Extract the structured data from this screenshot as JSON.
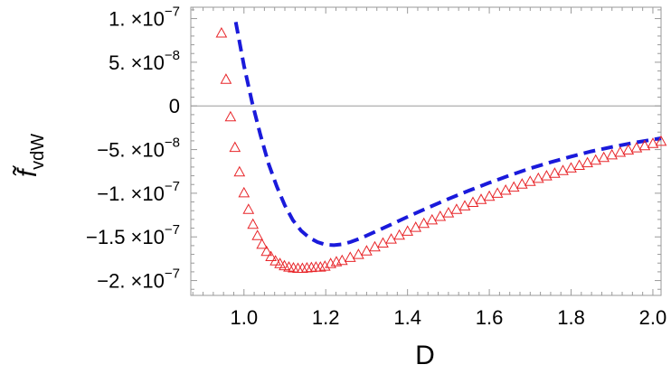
{
  "chart_data": {
    "type": "line",
    "title": "",
    "xlabel": "D",
    "ylabel": "f̃",
    "ylabel_sub": "vdW",
    "xlim": [
      0.87,
      2.02
    ],
    "ylim": [
      -2.17e-07,
      1.13e-07
    ],
    "x_ticks": [
      {
        "value": 1.0,
        "label": "1.0"
      },
      {
        "value": 1.2,
        "label": "1.2"
      },
      {
        "value": 1.4,
        "label": "1.4"
      },
      {
        "value": 1.6,
        "label": "1.6"
      },
      {
        "value": 1.8,
        "label": "1.8"
      },
      {
        "value": 2.0,
        "label": "2.0"
      }
    ],
    "y_ticks": [
      {
        "value": 1e-07,
        "mant": "1.",
        "exp": "-7"
      },
      {
        "value": 5e-08,
        "mant": "5.",
        "exp": "-8"
      },
      {
        "value": 0,
        "mant": "0",
        "exp": ""
      },
      {
        "value": -5e-08,
        "mant": "-5.",
        "exp": "-8"
      },
      {
        "value": -1e-07,
        "mant": "-1.",
        "exp": "-7"
      },
      {
        "value": -1.5e-07,
        "mant": "-1.5",
        "exp": "-7"
      },
      {
        "value": -2e-07,
        "mant": "-2.",
        "exp": "-7"
      }
    ],
    "tick_suffix": "×10",
    "zero_line": true,
    "series": [
      {
        "style": "dashed-line",
        "color": "#1a1adb",
        "x": [
          0.98,
          1.0,
          1.02,
          1.04,
          1.06,
          1.08,
          1.1,
          1.12,
          1.14,
          1.16,
          1.18,
          1.2,
          1.22,
          1.24,
          1.26,
          1.28,
          1.3,
          1.35,
          1.4,
          1.45,
          1.5,
          1.55,
          1.6,
          1.65,
          1.7,
          1.75,
          1.8,
          1.85,
          1.9,
          1.95,
          2.0,
          2.02
        ],
        "y": [
          9.6e-08,
          4.6e-08,
          4e-09,
          -3.3e-08,
          -6.6e-08,
          -9.2e-08,
          -1.14e-07,
          -1.31e-07,
          -1.43e-07,
          -1.51e-07,
          -1.56e-07,
          -1.59e-07,
          -1.595e-07,
          -1.585e-07,
          -1.56e-07,
          -1.525e-07,
          -1.485e-07,
          -1.38e-07,
          -1.27e-07,
          -1.165e-07,
          -1.065e-07,
          -9.7e-08,
          -8.8e-08,
          -7.95e-08,
          -7.15e-08,
          -6.45e-08,
          -5.8e-08,
          -5.2e-08,
          -4.7e-08,
          -4.25e-08,
          -3.85e-08,
          -3.7e-08
        ]
      },
      {
        "style": "triangle-markers",
        "color": "#e8262a",
        "x": [
          0.945,
          0.956,
          0.967,
          0.978,
          0.989,
          1.0,
          1.011,
          1.022,
          1.033,
          1.044,
          1.055,
          1.066,
          1.077,
          1.088,
          1.099,
          1.11,
          1.121,
          1.132,
          1.143,
          1.154,
          1.165,
          1.176,
          1.187,
          1.198,
          1.212,
          1.226,
          1.24,
          1.26,
          1.28,
          1.3,
          1.32,
          1.34,
          1.36,
          1.38,
          1.4,
          1.42,
          1.44,
          1.46,
          1.48,
          1.5,
          1.52,
          1.54,
          1.56,
          1.58,
          1.6,
          1.62,
          1.64,
          1.66,
          1.68,
          1.7,
          1.72,
          1.74,
          1.76,
          1.78,
          1.8,
          1.82,
          1.84,
          1.86,
          1.88,
          1.9,
          1.92,
          1.94,
          1.96,
          1.98,
          2.0,
          2.02
        ],
        "y": [
          8.3e-08,
          3e-08,
          -1.3e-08,
          -4.8e-08,
          -7.6e-08,
          -1e-07,
          -1.19e-07,
          -1.36e-07,
          -1.49e-07,
          -1.59e-07,
          -1.67e-07,
          -1.73e-07,
          -1.78e-07,
          -1.81e-07,
          -1.835e-07,
          -1.85e-07,
          -1.86e-07,
          -1.865e-07,
          -1.865e-07,
          -1.86e-07,
          -1.855e-07,
          -1.85e-07,
          -1.85e-07,
          -1.84e-07,
          -1.81e-07,
          -1.79e-07,
          -1.775e-07,
          -1.74e-07,
          -1.705e-07,
          -1.665e-07,
          -1.62e-07,
          -1.575e-07,
          -1.53e-07,
          -1.485e-07,
          -1.44e-07,
          -1.395e-07,
          -1.35e-07,
          -1.31e-07,
          -1.27e-07,
          -1.23e-07,
          -1.19e-07,
          -1.15e-07,
          -1.11e-07,
          -1.075e-07,
          -1.04e-07,
          -1.005e-07,
          -9.7e-08,
          -9.35e-08,
          -9e-08,
          -8.7e-08,
          -8.35e-08,
          -8.05e-08,
          -7.75e-08,
          -7.45e-08,
          -7.15e-08,
          -6.85e-08,
          -6.55e-08,
          -6.25e-08,
          -5.95e-08,
          -5.65e-08,
          -5.35e-08,
          -5.1e-08,
          -4.85e-08,
          -4.6e-08,
          -4.35e-08,
          -4.1e-08
        ]
      }
    ],
    "grid": false,
    "legend": "none"
  }
}
